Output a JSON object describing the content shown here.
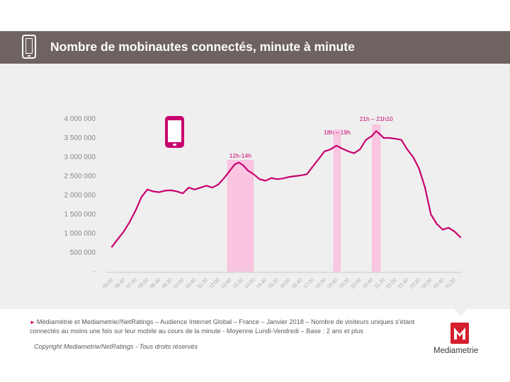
{
  "header": {
    "title": "Nombre de mobinautes connectés, minute à minute",
    "icon": "smartphone-icon"
  },
  "chart_data": {
    "type": "line",
    "title": "",
    "xlabel": "",
    "ylabel": "",
    "ylim": [
      0,
      4000000
    ],
    "y_ticks": [
      "4 000 000",
      "3 500 000",
      "3 000 000",
      "2 500 000",
      "2 000 000",
      "1 500 000",
      "1 000 000",
      "500 000",
      "-"
    ],
    "x_ticks": [
      "06:00",
      "06:40",
      "07:20",
      "08:00",
      "08:40",
      "09:20",
      "10:00",
      "10:40",
      "11:20",
      "12:00",
      "12:40",
      "13:20",
      "14:00",
      "14:40",
      "15:20",
      "16:00",
      "16:40",
      "17:20",
      "18:00",
      "18:40",
      "19:20",
      "20:00",
      "20:40",
      "21:20",
      "22:00",
      "22:40",
      "23:20",
      "00:00",
      "00:40",
      "01:20"
    ],
    "series_color": "#c8006e",
    "highlight_color": "#f9c5e1",
    "highlights": [
      {
        "label": "12h-14h",
        "start": "12:30",
        "end": "14:00"
      },
      {
        "label": "18h – 19h",
        "start": "18:30",
        "end": "18:55"
      },
      {
        "label": "21h – 21h10",
        "start": "20:40",
        "end": "21:10"
      }
    ],
    "series": [
      {
        "points": [
          [
            "06:00",
            650000
          ],
          [
            "06:20",
            850000
          ],
          [
            "06:40",
            1050000
          ],
          [
            "07:00",
            1300000
          ],
          [
            "07:20",
            1600000
          ],
          [
            "07:40",
            1950000
          ],
          [
            "08:00",
            2150000
          ],
          [
            "08:20",
            2100000
          ],
          [
            "08:40",
            2080000
          ],
          [
            "09:00",
            2120000
          ],
          [
            "09:20",
            2130000
          ],
          [
            "09:40",
            2100000
          ],
          [
            "10:00",
            2050000
          ],
          [
            "10:20",
            2200000
          ],
          [
            "10:40",
            2150000
          ],
          [
            "11:00",
            2200000
          ],
          [
            "11:20",
            2250000
          ],
          [
            "11:40",
            2200000
          ],
          [
            "12:00",
            2280000
          ],
          [
            "12:20",
            2450000
          ],
          [
            "12:40",
            2650000
          ],
          [
            "12:55",
            2800000
          ],
          [
            "13:10",
            2860000
          ],
          [
            "13:25",
            2780000
          ],
          [
            "13:40",
            2650000
          ],
          [
            "14:00",
            2550000
          ],
          [
            "14:20",
            2420000
          ],
          [
            "14:40",
            2380000
          ],
          [
            "15:00",
            2450000
          ],
          [
            "15:20",
            2420000
          ],
          [
            "15:40",
            2440000
          ],
          [
            "16:00",
            2480000
          ],
          [
            "16:20",
            2500000
          ],
          [
            "16:40",
            2520000
          ],
          [
            "17:00",
            2550000
          ],
          [
            "17:20",
            2750000
          ],
          [
            "17:40",
            2950000
          ],
          [
            "18:00",
            3150000
          ],
          [
            "18:20",
            3200000
          ],
          [
            "18:40",
            3300000
          ],
          [
            "19:00",
            3220000
          ],
          [
            "19:20",
            3150000
          ],
          [
            "19:40",
            3100000
          ],
          [
            "20:00",
            3200000
          ],
          [
            "20:20",
            3450000
          ],
          [
            "20:40",
            3550000
          ],
          [
            "20:55",
            3680000
          ],
          [
            "21:10",
            3580000
          ],
          [
            "21:20",
            3500000
          ],
          [
            "21:40",
            3500000
          ],
          [
            "22:00",
            3480000
          ],
          [
            "22:20",
            3450000
          ],
          [
            "22:40",
            3200000
          ],
          [
            "23:00",
            3000000
          ],
          [
            "23:20",
            2700000
          ],
          [
            "23:40",
            2200000
          ],
          [
            "00:00",
            1500000
          ],
          [
            "00:20",
            1250000
          ],
          [
            "00:40",
            1100000
          ],
          [
            "01:00",
            1150000
          ],
          [
            "01:20",
            1050000
          ],
          [
            "01:40",
            900000
          ]
        ]
      }
    ],
    "grid": false,
    "legend": "none"
  },
  "footer": {
    "source": "Médiamétrie et Mediametrie//NetRatings – Audience Internet Global – France – Janvier 2018 – Nombre de visiteurs uniques s’étant connectés au moins une fois sur leur mobile au cours de la minute - Moyenne Lundi-Vendredi – Base : 2 ans et plus",
    "copyright": "Copyright Mediametrie/NetRatings - Tous droits réservés",
    "brand": "Mediametrie",
    "brand_color": "#d41f2f"
  }
}
